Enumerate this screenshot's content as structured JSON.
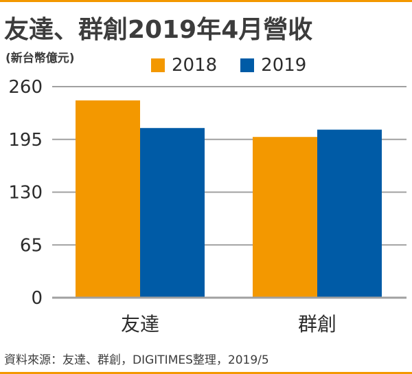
{
  "header": {
    "title": "友達、群創2019年4月營收",
    "unit": "(新台幣億元)"
  },
  "footer": {
    "source": "資料來源：友達、群創，DIGITIMES整理，2019/5"
  },
  "colors": {
    "series_2018": "#f39800",
    "series_2019": "#005ba6",
    "grid": "#a0a0a0",
    "accent_border": "#f39800"
  },
  "chart_data": {
    "type": "bar",
    "categories": [
      "友達",
      "群創"
    ],
    "series": [
      {
        "name": "2018",
        "values": [
          243,
          198
        ]
      },
      {
        "name": "2019",
        "values": [
          209,
          207
        ]
      }
    ],
    "title": "友達、群創2019年4月營收",
    "ylabel": "(新台幣億元)",
    "xlabel": "",
    "ylim": [
      0,
      260
    ],
    "yticks": [
      0,
      65,
      130,
      195,
      260
    ],
    "grid": true,
    "legend": "top"
  }
}
